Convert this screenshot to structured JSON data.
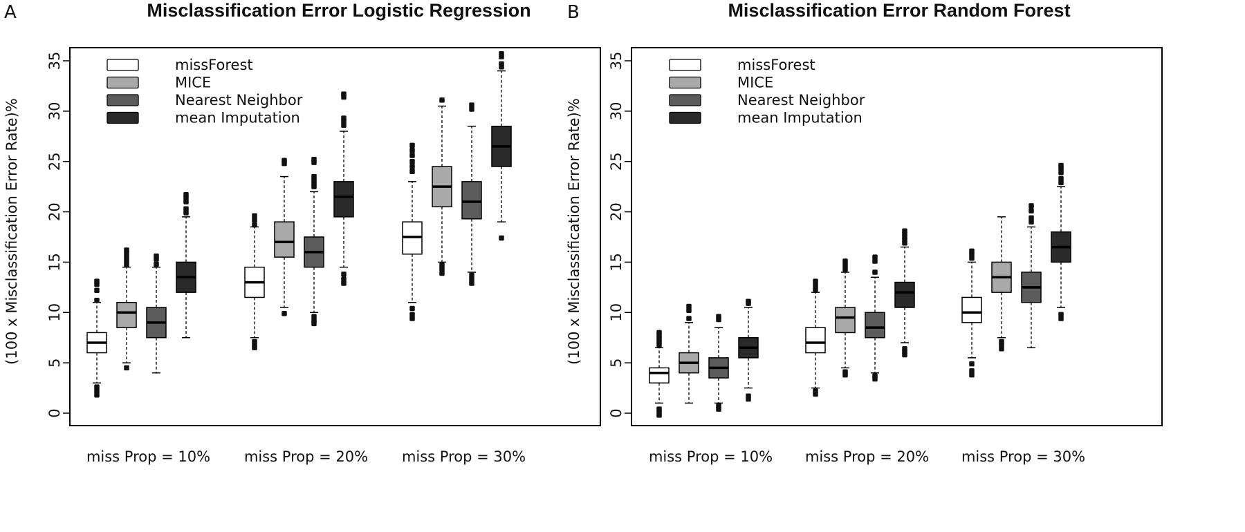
{
  "chart_data": [
    {
      "type": "boxplot",
      "panel_letter": "A",
      "title": "Misclassification Error Logistic Regression",
      "ylabel": "(100 x Misclassification Error Rate)%",
      "ylim": [
        0,
        35
      ],
      "yticks": [
        0,
        5,
        10,
        15,
        20,
        25,
        30,
        35
      ],
      "categories": [
        "miss Prop = 10%",
        "miss Prop = 20%",
        "miss Prop = 30%"
      ],
      "legend": {
        "placement": "top-left"
      },
      "series": [
        {
          "name": "missForest",
          "color": "#ffffff",
          "boxes": [
            {
              "whisker_low": 3,
              "q1": 6,
              "median": 7,
              "q3": 8,
              "whisker_high": 11,
              "outliers": [
                1.8,
                2.2,
                2.6,
                11.2,
                12.2,
                12.8,
                13.1
              ]
            },
            {
              "whisker_low": 7.5,
              "q1": 11.5,
              "median": 13,
              "q3": 14.5,
              "whisker_high": 18.5,
              "outliers": [
                6.5,
                6.8,
                7.1,
                18.7,
                19.2,
                19.6
              ]
            },
            {
              "whisker_low": 11,
              "q1": 15.8,
              "median": 17.5,
              "q3": 19,
              "whisker_high": 23,
              "outliers": [
                9.4,
                9.8,
                10.4,
                24,
                24.5,
                25,
                25.6,
                26.1,
                26.6
              ]
            }
          ]
        },
        {
          "name": "MICE",
          "color": "#a9a9a9",
          "boxes": [
            {
              "whisker_low": 5,
              "q1": 8.5,
              "median": 10,
              "q3": 11,
              "whisker_high": 14.5,
              "outliers": [
                4.5,
                14.7,
                15.1,
                15.5,
                15.9,
                16.2
              ]
            },
            {
              "whisker_low": 10.5,
              "q1": 15.5,
              "median": 17,
              "q3": 19,
              "whisker_high": 23.5,
              "outliers": [
                9.9,
                24.8,
                25.1
              ]
            },
            {
              "whisker_low": 15,
              "q1": 20.5,
              "median": 22.5,
              "q3": 24.5,
              "whisker_high": 30.5,
              "outliers": [
                13.9,
                14.3,
                14.7,
                31.1
              ]
            }
          ]
        },
        {
          "name": "Nearest Neighbor",
          "color": "#5c5c5c",
          "boxes": [
            {
              "whisker_low": 4,
              "q1": 7.5,
              "median": 9,
              "q3": 10.5,
              "whisker_high": 14.5,
              "outliers": [
                14.8,
                15.3,
                15.6
              ]
            },
            {
              "whisker_low": 10,
              "q1": 14.5,
              "median": 16,
              "q3": 17.5,
              "whisker_high": 22,
              "outliers": [
                8.9,
                9.2,
                9.6,
                22.5,
                22.8,
                23.2,
                23.5,
                24.9,
                25.2
              ]
            },
            {
              "whisker_low": 14,
              "q1": 19.3,
              "median": 21,
              "q3": 23,
              "whisker_high": 28.5,
              "outliers": [
                12.9,
                13.3,
                13.7,
                30.2,
                30.6
              ]
            }
          ]
        },
        {
          "name": "mean Imputation",
          "color": "#2a2a2a",
          "boxes": [
            {
              "whisker_low": 7.5,
              "q1": 12,
              "median": 13.5,
              "q3": 15,
              "whisker_high": 19.5,
              "outliers": [
                19.9,
                20.3,
                21,
                21.4,
                21.7
              ]
            },
            {
              "whisker_low": 14.5,
              "q1": 19.5,
              "median": 21.5,
              "q3": 23,
              "whisker_high": 28,
              "outliers": [
                12.9,
                13.3,
                13.8,
                28.6,
                29,
                29.3,
                31.4,
                31.7
              ]
            },
            {
              "whisker_low": 19,
              "q1": 24.5,
              "median": 26.5,
              "q3": 28.5,
              "whisker_high": 34,
              "outliers": [
                17.4,
                34.4,
                34.7,
                35.4,
                35.7
              ]
            }
          ]
        }
      ]
    },
    {
      "type": "boxplot",
      "panel_letter": "B",
      "title": "Misclassification Error Random Forest",
      "ylabel": "(100 x Misclassification Error Rate)%",
      "ylim": [
        0,
        35
      ],
      "yticks": [
        0,
        5,
        10,
        15,
        20,
        25,
        30,
        35
      ],
      "categories": [
        "miss Prop = 10%",
        "miss Prop = 20%",
        "miss Prop = 30%"
      ],
      "legend": {
        "placement": "top-left"
      },
      "series": [
        {
          "name": "missForest",
          "color": "#ffffff",
          "boxes": [
            {
              "whisker_low": 1,
              "q1": 3,
              "median": 4,
              "q3": 4.5,
              "whisker_high": 6.5,
              "outliers": [
                -0.2,
                0.1,
                0.4,
                6.8,
                7.1,
                7.4,
                7.7,
                8.0
              ]
            },
            {
              "whisker_low": 2.5,
              "q1": 6,
              "median": 7,
              "q3": 8.5,
              "whisker_high": 12,
              "outliers": [
                1.9,
                2.2,
                12.3,
                12.7,
                13.1
              ]
            },
            {
              "whisker_low": 5.5,
              "q1": 9,
              "median": 10,
              "q3": 11.5,
              "whisker_high": 15,
              "outliers": [
                3.8,
                4.2,
                4.9,
                15.4,
                15.8,
                16.1
              ]
            }
          ]
        },
        {
          "name": "MICE",
          "color": "#a9a9a9",
          "boxes": [
            {
              "whisker_low": 1,
              "q1": 4,
              "median": 5,
              "q3": 6,
              "whisker_high": 9,
              "outliers": [
                9.4,
                10.2,
                10.6
              ]
            },
            {
              "whisker_low": 4.5,
              "q1": 8,
              "median": 9.5,
              "q3": 10.5,
              "whisker_high": 14,
              "outliers": [
                3.8,
                4.1,
                14.3,
                14.7,
                15.1
              ]
            },
            {
              "whisker_low": 7.5,
              "q1": 12,
              "median": 13.5,
              "q3": 15,
              "whisker_high": 19.5,
              "outliers": [
                6.4,
                6.8,
                7.1
              ]
            }
          ]
        },
        {
          "name": "Nearest Neighbor",
          "color": "#5c5c5c",
          "boxes": [
            {
              "whisker_low": 1,
              "q1": 3.5,
              "median": 4.5,
              "q3": 5.5,
              "whisker_high": 8.5,
              "outliers": [
                0.4,
                0.7,
                9.3,
                9.6
              ]
            },
            {
              "whisker_low": 4,
              "q1": 7.5,
              "median": 8.5,
              "q3": 10,
              "whisker_high": 13.5,
              "outliers": [
                3.4,
                3.7,
                14,
                15.1,
                15.5
              ]
            },
            {
              "whisker_low": 6.5,
              "q1": 11,
              "median": 12.5,
              "q3": 14,
              "whisker_high": 18.5,
              "outliers": [
                19,
                19.4,
                20.1,
                20.6
              ]
            }
          ]
        },
        {
          "name": "mean Imputation",
          "color": "#2a2a2a",
          "boxes": [
            {
              "whisker_low": 2.5,
              "q1": 5.5,
              "median": 6.5,
              "q3": 7.5,
              "whisker_high": 10.5,
              "outliers": [
                1.4,
                1.7,
                10.9,
                11.1
              ]
            },
            {
              "whisker_low": 7,
              "q1": 10.5,
              "median": 12,
              "q3": 13,
              "whisker_high": 16.5,
              "outliers": [
                5.8,
                6.1,
                6.4,
                16.9,
                17.2,
                17.5,
                17.8,
                18.1
              ]
            },
            {
              "whisker_low": 10.5,
              "q1": 15,
              "median": 16.5,
              "q3": 18,
              "whisker_high": 22.5,
              "outliers": [
                9.4,
                9.8,
                22.9,
                23.3,
                23.9,
                24.3,
                24.6
              ]
            }
          ]
        }
      ]
    }
  ]
}
